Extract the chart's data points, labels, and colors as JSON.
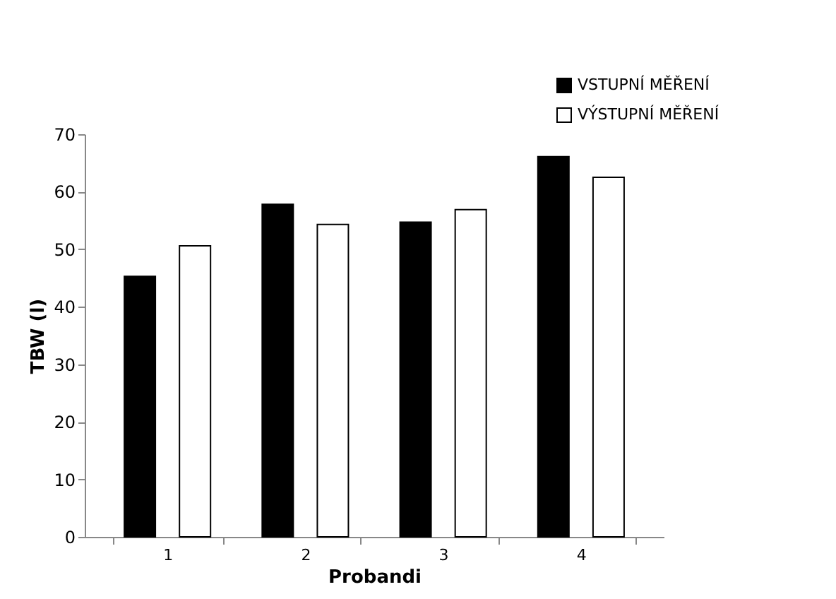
{
  "chart_data": {
    "type": "bar",
    "xlabel": "Probandi",
    "ylabel": "TBW  (l)",
    "categories": [
      "1",
      "2",
      "3",
      "4"
    ],
    "series": [
      {
        "name": "VSTUPNÍ MĚŘENÍ",
        "color": "#000000",
        "values": [
          45.3,
          57.8,
          54.7,
          66.1
        ]
      },
      {
        "name": "VÝSTUPNÍ MĚŘENÍ",
        "color": "#ffffff",
        "values": [
          50.6,
          54.3,
          56.9,
          62.5
        ]
      }
    ],
    "ylim": [
      0,
      70
    ],
    "yticks": [
      0,
      10,
      20,
      30,
      40,
      50,
      60,
      70
    ],
    "grid": false,
    "legend": "top right"
  }
}
